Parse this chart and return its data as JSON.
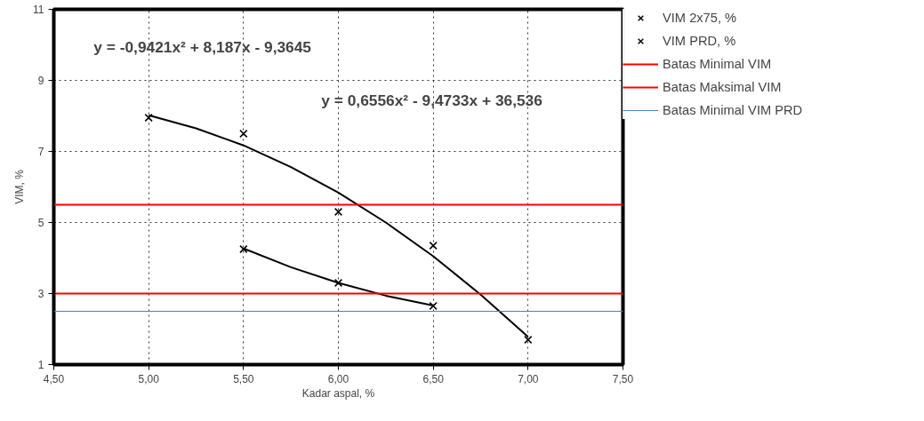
{
  "chart_data": {
    "type": "scatter",
    "xlabel": "Kadar aspal, %",
    "ylabel": "VIM, %",
    "xlim": [
      4.5,
      7.5
    ],
    "xticks": [
      {
        "value": 4.5,
        "label": "4,50"
      },
      {
        "value": 5.0,
        "label": "5,00"
      },
      {
        "value": 5.5,
        "label": "5,50"
      },
      {
        "value": 6.0,
        "label": "6,00"
      },
      {
        "value": 6.5,
        "label": "6,50"
      },
      {
        "value": 7.0,
        "label": "7,00"
      },
      {
        "value": 7.5,
        "label": "7,50"
      }
    ],
    "ylim": [
      1,
      11
    ],
    "yticks": [
      1,
      3,
      5,
      7,
      9,
      11
    ],
    "grid": true,
    "legend": "right",
    "series": [
      {
        "name": "VIM 2x75, %",
        "color": "#000000",
        "marker": "cross",
        "x": [
          5.0,
          5.5,
          6.0,
          6.5,
          7.0
        ],
        "values": [
          7.95,
          7.5,
          5.3,
          4.35,
          1.7
        ]
      },
      {
        "name": "VIM PRD, %",
        "color": "#000000",
        "marker": "cross",
        "x": [
          5.5,
          6.0,
          6.5
        ],
        "values": [
          4.25,
          3.3,
          2.65
        ]
      },
      {
        "type": "line",
        "color": "#000000",
        "x": [
          5.0,
          5.25,
          5.5,
          5.75,
          6.0,
          6.25,
          6.5,
          6.75,
          7.0
        ],
        "values": [
          8.02,
          7.65,
          7.17,
          6.56,
          5.84,
          5.0,
          4.05,
          2.97,
          1.78
        ]
      },
      {
        "type": "line",
        "color": "#000000",
        "x": [
          5.5,
          5.75,
          6.0,
          6.25,
          6.5
        ],
        "values": [
          4.27,
          3.74,
          3.3,
          2.94,
          2.66
        ]
      }
    ],
    "ref_lines": [
      {
        "axis": "y",
        "value": 5.5,
        "label": "Batas Minimal VIM",
        "color": "#ff0000"
      },
      {
        "axis": "y",
        "value": 3,
        "label": "Batas Maksimal VIM",
        "color": "#ff0000"
      },
      {
        "axis": "y",
        "value": 2.5,
        "label": "Batas Minimal VIM PRD",
        "color": "#4f81bd"
      }
    ],
    "annotations": [
      "y = -0,9421x² + 8,187x - 9,3645",
      "y = 0,6556x² - 9,4733x + 36,536"
    ]
  }
}
